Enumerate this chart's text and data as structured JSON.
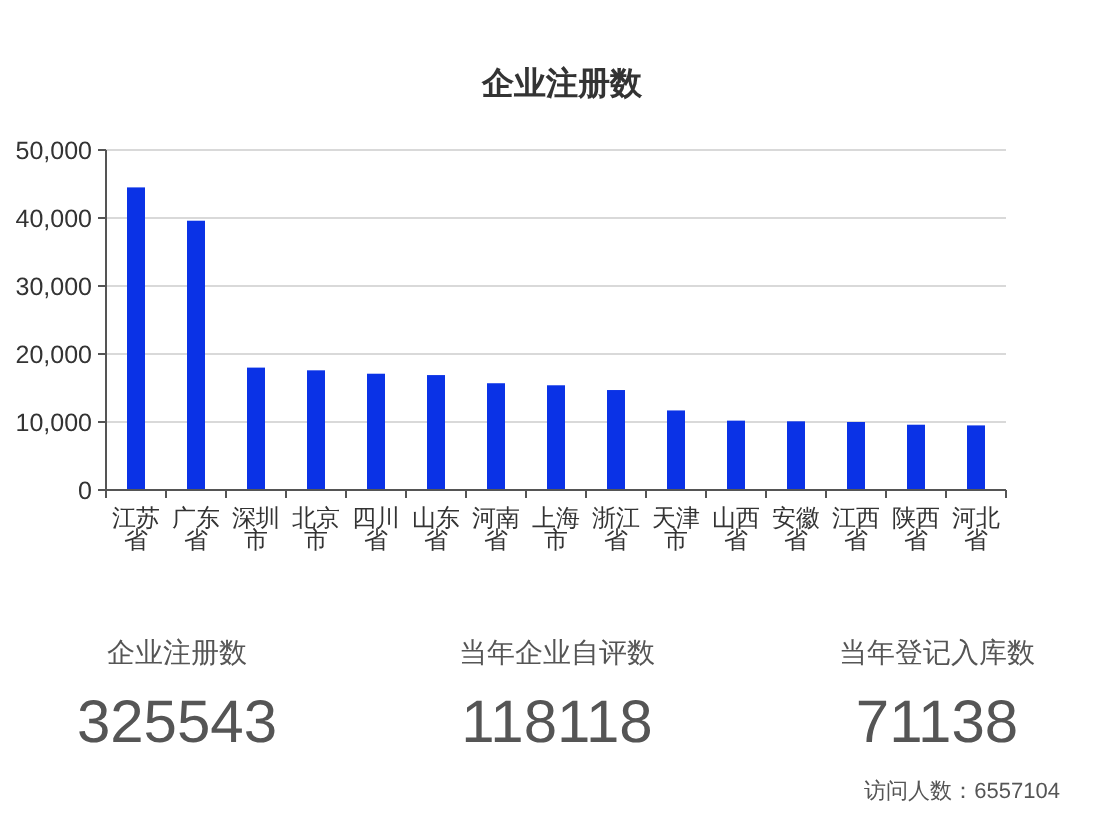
{
  "chart_data": [
    {
      "type": "bar",
      "title": "企业注册数",
      "categories": [
        "江苏省",
        "广东省",
        "深圳市",
        "北京市",
        "四川省",
        "山东省",
        "河南省",
        "上海市",
        "浙江省",
        "天津市",
        "山西省",
        "安徽省",
        "江西省",
        "陕西省",
        "河北省"
      ],
      "values": [
        44500,
        39600,
        18000,
        17600,
        17100,
        16900,
        15700,
        15400,
        14700,
        11700,
        10200,
        10100,
        10000,
        9600,
        9500
      ],
      "color": "#0a32e6",
      "ylim": [
        0,
        50000
      ],
      "yticks": [
        0,
        {
          "value": 10000,
          "label": "10,000"
        },
        {
          "value": 20000,
          "label": "20,000"
        },
        {
          "value": 30000,
          "label": "30,000"
        },
        {
          "value": 40000,
          "label": "40,000"
        },
        {
          "value": 50000,
          "label": "50,000"
        }
      ],
      "grid": "y"
    },
    {
      "type": "other",
      "categories": [
        "企业注册数",
        "当年企业自评数",
        "当年登记入库数"
      ],
      "values": [
        325543,
        118118,
        71138
      ],
      "data_labels": true,
      "annotations": [
        "访问人数：6557104"
      ]
    }
  ]
}
